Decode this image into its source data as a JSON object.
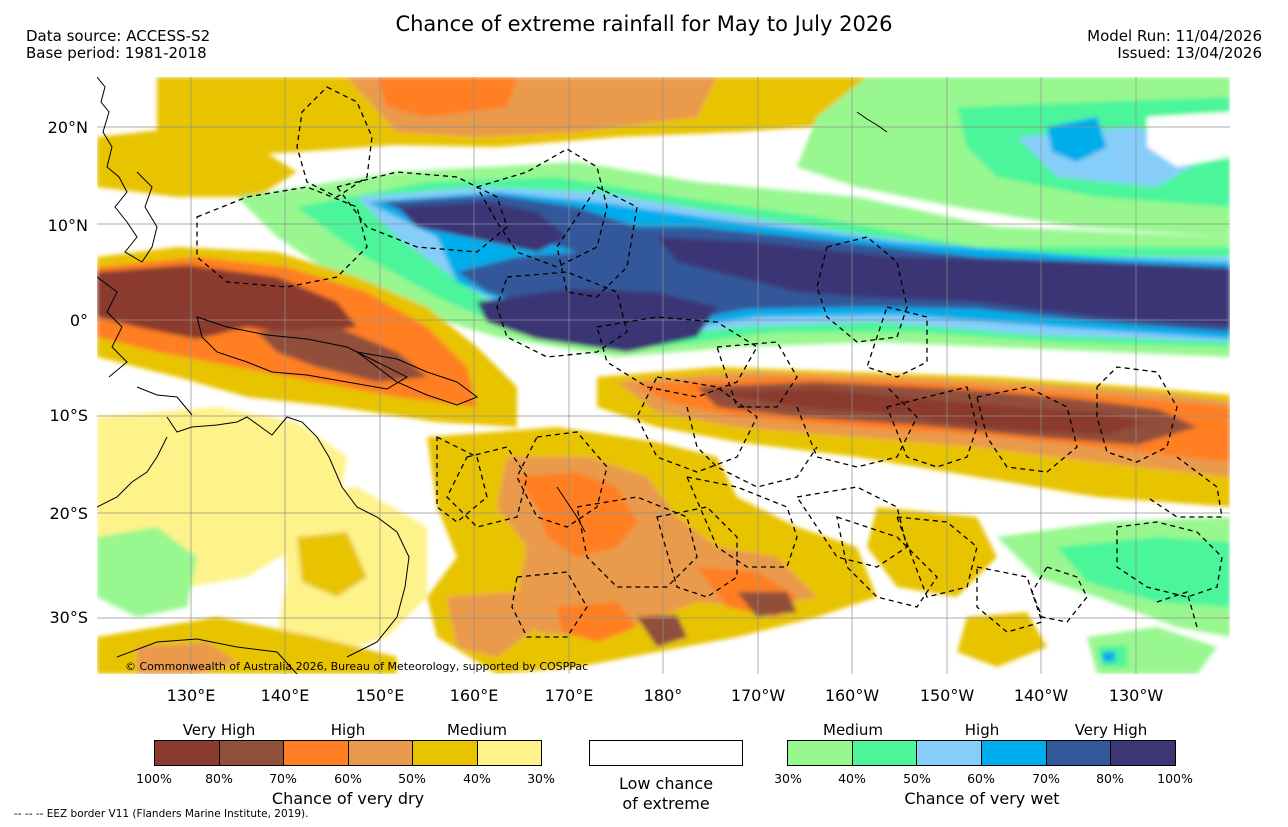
{
  "header": {
    "title": "Chance of extreme rainfall for May to July 2026",
    "data_source": "Data source: ACCESS-S2",
    "base_period": "Base period: 1981-2018",
    "model_run": "Model Run: 11/04/2026",
    "issued": "Issued: 13/04/2026"
  },
  "map": {
    "lat_labels": [
      "20°N",
      "10°N",
      "0°",
      "10°S",
      "20°S",
      "30°S"
    ],
    "lon_labels": [
      "130°E",
      "140°E",
      "150°E",
      "160°E",
      "170°E",
      "180°",
      "170°W",
      "160°W",
      "150°W",
      "140°W",
      "130°W"
    ],
    "copyright": "© Commonwealth of Australia 2026, Bureau of Meteorology, supported by COSPPac"
  },
  "legend": {
    "dry": {
      "categories": [
        "Very High",
        "High",
        "Medium"
      ],
      "percentages": [
        "100%",
        "80%",
        "70%",
        "60%",
        "50%",
        "40%",
        "30%"
      ],
      "colors": [
        "#8b3a2f",
        "#91503a",
        "#ff7f24",
        "#ea9a4c",
        "#e8c300",
        "#fef28a"
      ],
      "title": "Chance of very dry"
    },
    "low": {
      "line1": "Low chance",
      "line2": "of extreme"
    },
    "wet": {
      "categories": [
        "Medium",
        "High",
        "Very High"
      ],
      "percentages": [
        "30%",
        "40%",
        "50%",
        "60%",
        "70%",
        "80%",
        "100%"
      ],
      "colors": [
        "#98f78f",
        "#4cf59a",
        "#86cdfa",
        "#00adec",
        "#33599b",
        "#3b3674"
      ],
      "title": "Chance of very wet"
    }
  },
  "footnote": "--  --  -- EEZ border V11 (Flanders Marine Institute, 2019)."
}
